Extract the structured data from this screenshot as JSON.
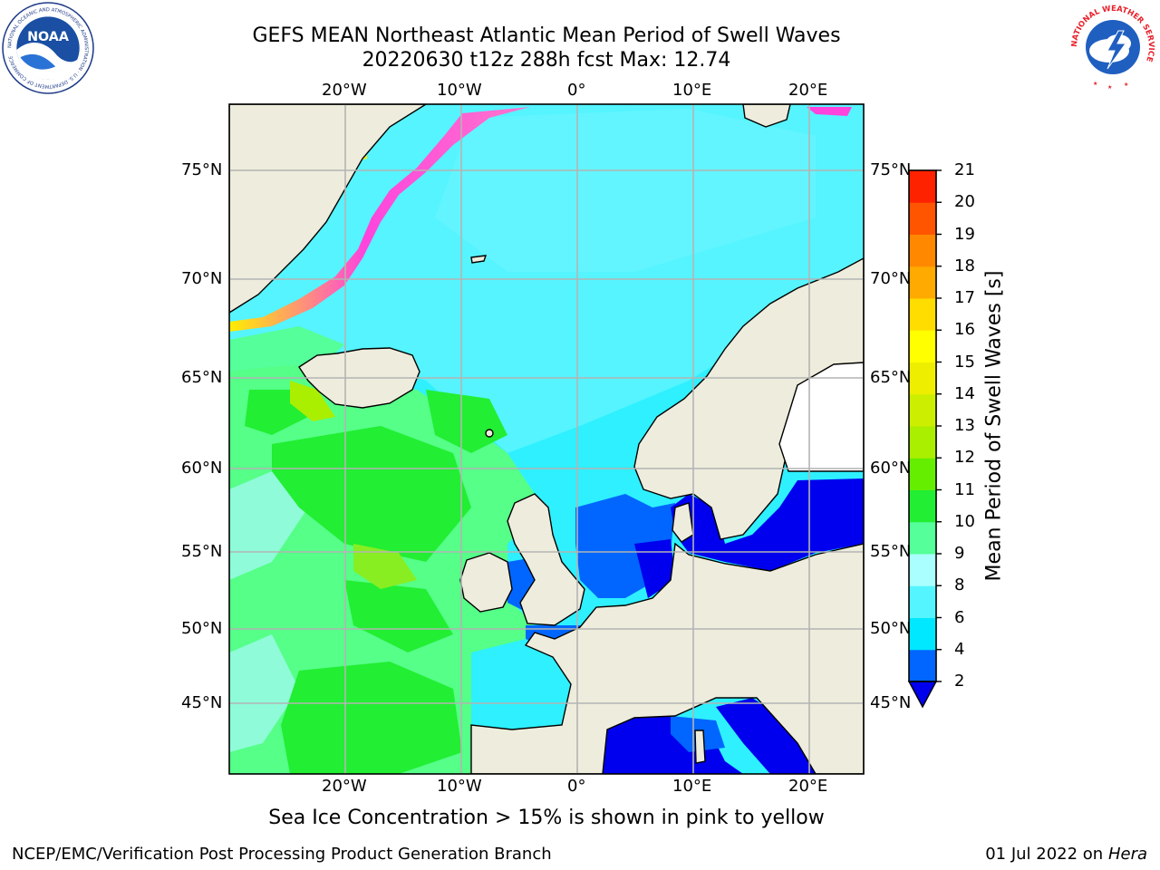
{
  "header": {
    "title_line1": "GEFS MEAN Northeast Atlantic Mean Period of Swell Waves",
    "title_line2": "20220630 t12z 288h fcst   Max: 12.74"
  },
  "logos": {
    "noaa_text": "NOAA",
    "noaa_ring_text": "NATIONAL OCEANIC AND ATMOSPHERIC ADMINISTRATION · U.S. DEPARTMENT OF COMMERCE",
    "nws_ring_text": "NATIONAL WEATHER SERVICE"
  },
  "map": {
    "lon_labels_top": [
      "20°W",
      "10°W",
      "0°",
      "10°E",
      "20°E"
    ],
    "lon_labels_bottom": [
      "20°W",
      "10°W",
      "0°",
      "10°E",
      "20°E"
    ],
    "lat_labels_left": [
      "75°N",
      "70°N",
      "65°N",
      "60°N",
      "55°N",
      "50°N",
      "45°N"
    ],
    "lat_labels_right": [
      "75°N",
      "70°N",
      "65°N",
      "60°N",
      "55°N",
      "50°N",
      "45°N"
    ],
    "colors": {
      "land": "#eeecdc",
      "grid": "#b4b4b4",
      "ice_pink": "#ff44dd",
      "ice_yellow": "#ffee00"
    }
  },
  "colorbar": {
    "label": "Mean Period of Swell Waves [s]",
    "ticks": [
      "2",
      "4",
      "6",
      "8",
      "9",
      "10",
      "11",
      "12",
      "13",
      "14",
      "15",
      "16",
      "17",
      "18",
      "19",
      "20",
      "21"
    ],
    "colors": [
      "#0066ff",
      "#00e8ff",
      "#55f5ff",
      "#aaffff",
      "#55ff99",
      "#22ee33",
      "#66ee00",
      "#aaee00",
      "#ccee00",
      "#eeee00",
      "#ffff00",
      "#ffdd00",
      "#ffaa00",
      "#ff8800",
      "#ff5500",
      "#ff2200"
    ],
    "under_color": "#0000ee"
  },
  "caption": "Sea Ice Concentration > 15% is shown in pink to yellow",
  "footer": {
    "left": "NCEP/EMC/Verification Post Processing Product Generation Branch",
    "date": "01 Jul 2022 on ",
    "host": "Hera"
  }
}
